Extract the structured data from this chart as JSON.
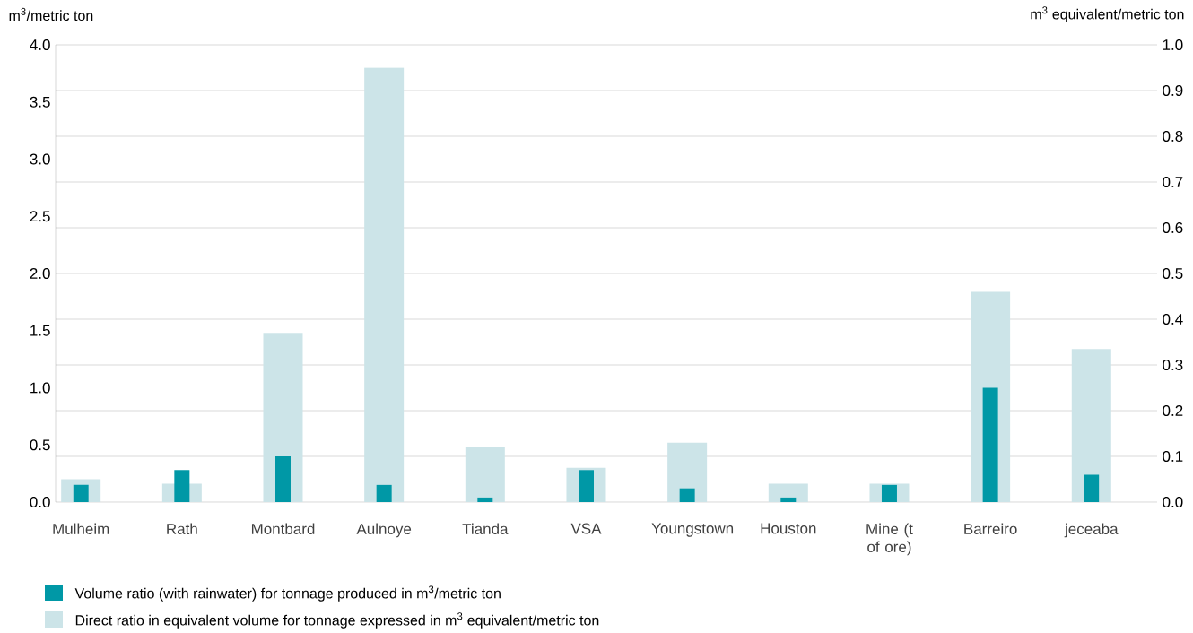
{
  "chart_data": {
    "type": "bar",
    "categories": [
      "Mulheim",
      "Rath",
      "Montbard",
      "Aulnoye",
      "Tianda",
      "VSA",
      "Youngstown",
      "Houston",
      "Mine (t of ore)",
      "Barreiro",
      "jeceaba"
    ],
    "series": [
      {
        "name": "Volume ratio (with rainwater) for tonnage produced in m$^{3}$/metric ton",
        "color": "#0098a6",
        "axis": "y",
        "values": [
          0.15,
          0.28,
          0.4,
          0.15,
          0.04,
          0.28,
          0.12,
          0.04,
          0.15,
          1.0,
          0.24
        ]
      },
      {
        "name": "Direct ratio in equivalent volume for tonnage expressed in m$^{3}$ equivalent/metric ton",
        "color": "#cce4e8",
        "axis": "y2",
        "values": [
          0.05,
          0.04,
          0.37,
          0.95,
          0.12,
          0.075,
          0.13,
          0.04,
          0.04,
          0.46,
          0.335
        ]
      }
    ],
    "ylabel": "m$^{3}$/metric ton",
    "y2label": "m$^{3}$ equivalent/metric ton",
    "ylim": [
      0,
      4
    ],
    "yticks": [
      {
        "value": 0,
        "label": "0.0"
      },
      {
        "value": 0.5,
        "label": "0.5"
      },
      {
        "value": 1,
        "label": "1.0"
      },
      {
        "value": 1.5,
        "label": "1.5"
      },
      {
        "value": 2,
        "label": "2.0"
      },
      {
        "value": 2.5,
        "label": "2.5"
      },
      {
        "value": 3,
        "label": "3.0"
      },
      {
        "value": 3.5,
        "label": "3.5"
      },
      {
        "value": 4,
        "label": "4.0"
      }
    ],
    "y2lim": [
      0,
      1
    ],
    "y2ticks": [
      {
        "value": 0,
        "label": "0.0"
      },
      0.1,
      0.2,
      0.3,
      0.4,
      0.5,
      0.6,
      0.7,
      0.8,
      0.9,
      {
        "value": 1,
        "label": "1.0"
      }
    ],
    "grid": true,
    "legend": "bottom"
  }
}
